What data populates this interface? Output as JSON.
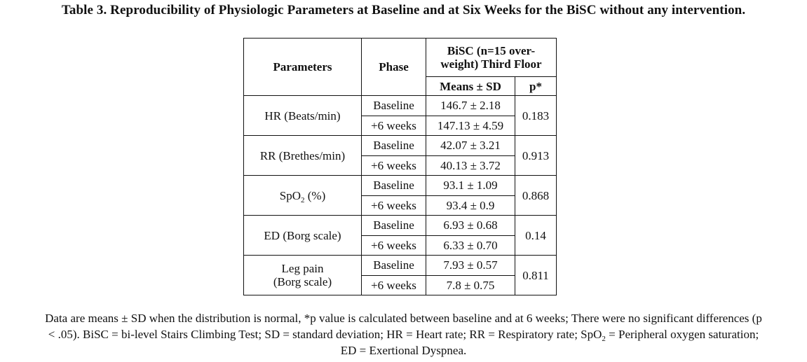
{
  "title": "Table 3. Reproducibility of Physiologic Parameters at Baseline and at Six Weeks for the BiSC without any intervention.",
  "table": {
    "headers": {
      "parameters": "Parameters",
      "phase": "Phase",
      "group_line1": "BiSC (n=15 over-",
      "group_line2": "weight) Third Floor",
      "means": "Means ± SD",
      "p": "p*"
    },
    "rows": [
      {
        "parameter": "HR (Beats/min)",
        "baseline_label": "Baseline",
        "baseline": "146.7 ± 2.18",
        "week6_label": "+6 weeks",
        "week6": "147.13 ± 4.59",
        "p": "0.183"
      },
      {
        "parameter": "RR (Brethes/min)",
        "baseline_label": "Baseline",
        "baseline": "42.07 ± 3.21",
        "week6_label": "+6 weeks",
        "week6": "40.13 ± 3.72",
        "p": "0.913"
      },
      {
        "parameter_main": "SpO",
        "parameter_sub": "2",
        "parameter_rest": " (%)",
        "baseline_label": "Baseline",
        "baseline": "93.1 ± 1.09",
        "week6_label": "+6 weeks",
        "week6": "93.4 ± 0.9",
        "p": "0.868"
      },
      {
        "parameter": "ED (Borg scale)",
        "baseline_label": "Baseline",
        "baseline": "6.93 ± 0.68",
        "week6_label": "+6 weeks",
        "week6": "6.33 ± 0.70",
        "p": "0.14"
      },
      {
        "parameter_line1": "Leg pain",
        "parameter_line2": "(Borg scale)",
        "baseline_label": "Baseline",
        "baseline": "7.93 ± 0.57",
        "week6_label": "+6 weeks",
        "week6": "7.8 ± 0.75",
        "p": "0.811"
      }
    ]
  },
  "footnote": {
    "line1": "Data are means ± SD when the distribution is normal, *p value is calculated between baseline and at 6 weeks; There were no significant differences (p",
    "line2_a": "< .05). BiSC = bi-level Stairs Climbing Test; SD = standard deviation; HR = Heart rate; RR = Respiratory rate; SpO",
    "line2_sub": "2",
    "line2_b": " = Peripheral oxygen saturation;",
    "line3": "ED = Exertional Dyspnea."
  }
}
